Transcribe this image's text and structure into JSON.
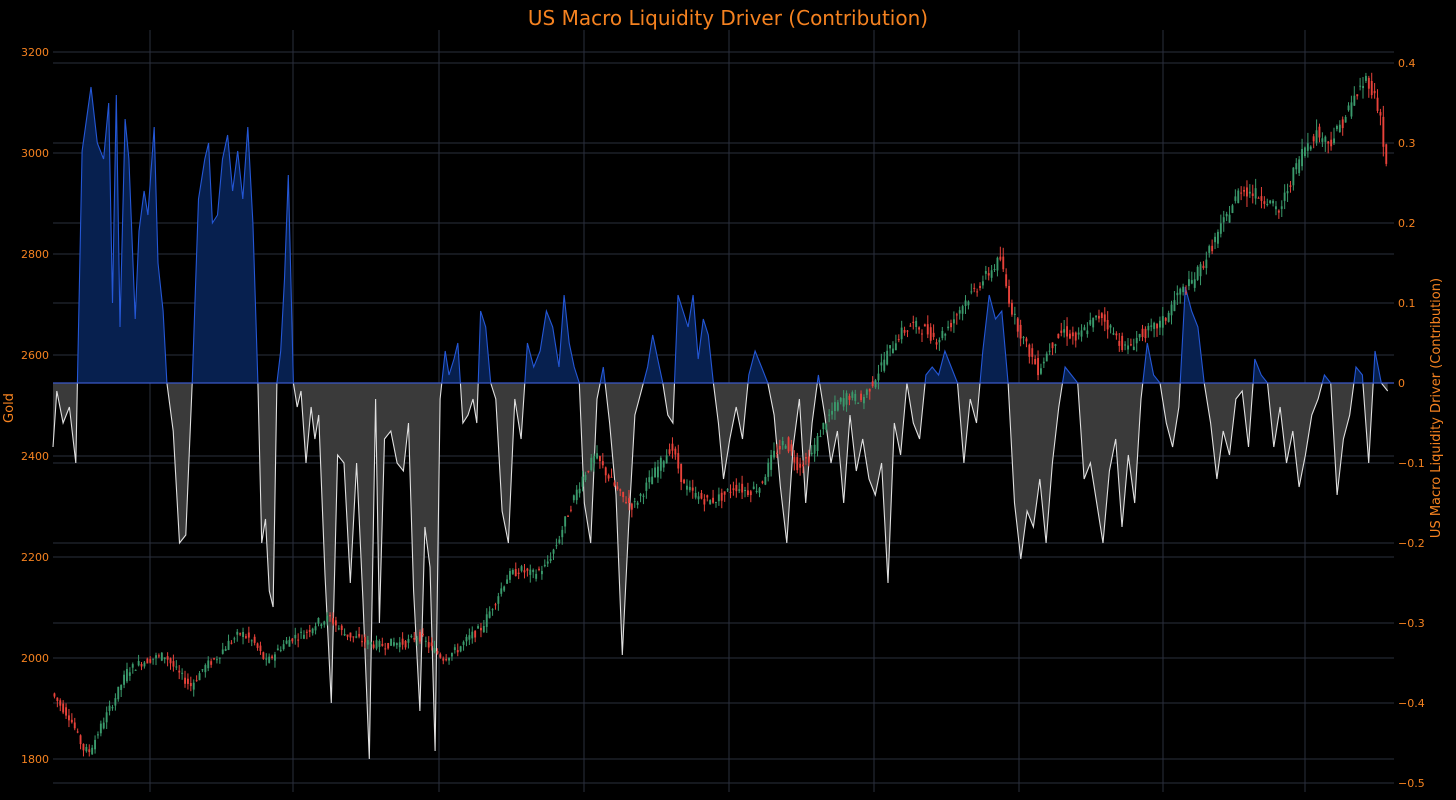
{
  "chart_data": {
    "type": "candlestick + area",
    "title": "US Macro Liquidity Driver (Contribution)",
    "y_left": {
      "label": "Gold",
      "range": [
        1750,
        3250
      ],
      "ticks": [
        1800,
        2000,
        2200,
        2400,
        2600,
        2800,
        3000,
        3200
      ]
    },
    "y_right": {
      "label": "US Macro Liquidity Driver (Contribution)",
      "range": [
        -0.5,
        0.43
      ],
      "ticks": [
        -0.5,
        -0.4,
        -0.3,
        -0.2,
        -0.1,
        0,
        0.1,
        0.2,
        0.3,
        0.4
      ]
    },
    "grid": true,
    "colors": {
      "up": "#3a9a6c",
      "down": "#e8423a",
      "positive": "#2457d6",
      "negative": "#e0e0e0",
      "positive_fill": "#07204f",
      "negative_fill": "#3a3a3a",
      "grid": "#2a2f3d",
      "accent": "#f58220"
    },
    "gold_path": [
      [
        0,
        1930
      ],
      [
        0.015,
        1880
      ],
      [
        0.025,
        1820
      ],
      [
        0.03,
        1815
      ],
      [
        0.04,
        1870
      ],
      [
        0.05,
        1920
      ],
      [
        0.06,
        1975
      ],
      [
        0.07,
        1990
      ],
      [
        0.08,
        2000
      ],
      [
        0.09,
        2005
      ],
      [
        0.1,
        1970
      ],
      [
        0.11,
        1945
      ],
      [
        0.12,
        1980
      ],
      [
        0.13,
        2000
      ],
      [
        0.14,
        2030
      ],
      [
        0.15,
        2050
      ],
      [
        0.16,
        2030
      ],
      [
        0.17,
        1990
      ],
      [
        0.18,
        2020
      ],
      [
        0.19,
        2040
      ],
      [
        0.2,
        2050
      ],
      [
        0.21,
        2070
      ],
      [
        0.22,
        2080
      ],
      [
        0.23,
        2050
      ],
      [
        0.24,
        2040
      ],
      [
        0.25,
        2030
      ],
      [
        0.26,
        2025
      ],
      [
        0.27,
        2030
      ],
      [
        0.28,
        2030
      ],
      [
        0.29,
        2045
      ],
      [
        0.3,
        2020
      ],
      [
        0.31,
        2000
      ],
      [
        0.32,
        2015
      ],
      [
        0.33,
        2040
      ],
      [
        0.34,
        2060
      ],
      [
        0.35,
        2110
      ],
      [
        0.36,
        2160
      ],
      [
        0.37,
        2175
      ],
      [
        0.38,
        2165
      ],
      [
        0.39,
        2180
      ],
      [
        0.4,
        2230
      ],
      [
        0.41,
        2300
      ],
      [
        0.42,
        2360
      ],
      [
        0.43,
        2400
      ],
      [
        0.44,
        2360
      ],
      [
        0.45,
        2320
      ],
      [
        0.46,
        2300
      ],
      [
        0.47,
        2340
      ],
      [
        0.48,
        2380
      ],
      [
        0.49,
        2420
      ],
      [
        0.5,
        2340
      ],
      [
        0.51,
        2320
      ],
      [
        0.52,
        2310
      ],
      [
        0.53,
        2320
      ],
      [
        0.54,
        2340
      ],
      [
        0.55,
        2330
      ],
      [
        0.56,
        2340
      ],
      [
        0.57,
        2400
      ],
      [
        0.58,
        2430
      ],
      [
        0.59,
        2380
      ],
      [
        0.6,
        2400
      ],
      [
        0.61,
        2460
      ],
      [
        0.62,
        2500
      ],
      [
        0.63,
        2520
      ],
      [
        0.64,
        2510
      ],
      [
        0.65,
        2550
      ],
      [
        0.66,
        2600
      ],
      [
        0.67,
        2640
      ],
      [
        0.68,
        2660
      ],
      [
        0.69,
        2650
      ],
      [
        0.7,
        2630
      ],
      [
        0.71,
        2660
      ],
      [
        0.72,
        2700
      ],
      [
        0.73,
        2730
      ],
      [
        0.74,
        2760
      ],
      [
        0.75,
        2790
      ],
      [
        0.755,
        2730
      ],
      [
        0.76,
        2680
      ],
      [
        0.77,
        2620
      ],
      [
        0.78,
        2570
      ],
      [
        0.79,
        2620
      ],
      [
        0.8,
        2650
      ],
      [
        0.81,
        2630
      ],
      [
        0.82,
        2660
      ],
      [
        0.83,
        2680
      ],
      [
        0.84,
        2640
      ],
      [
        0.85,
        2610
      ],
      [
        0.86,
        2640
      ],
      [
        0.87,
        2650
      ],
      [
        0.88,
        2670
      ],
      [
        0.89,
        2720
      ],
      [
        0.9,
        2740
      ],
      [
        0.91,
        2780
      ],
      [
        0.92,
        2830
      ],
      [
        0.93,
        2880
      ],
      [
        0.94,
        2930
      ],
      [
        0.95,
        2920
      ],
      [
        0.96,
        2910
      ],
      [
        0.97,
        2880
      ],
      [
        0.98,
        2950
      ],
      [
        0.99,
        3010
      ],
      [
        1.0,
        3040
      ],
      [
        1.01,
        3020
      ],
      [
        1.02,
        3060
      ],
      [
        1.03,
        3110
      ],
      [
        1.04,
        3150
      ],
      [
        1.05,
        3080
      ],
      [
        1.055,
        2970
      ]
    ],
    "driver_path": [
      [
        0,
        -0.08
      ],
      [
        0.003,
        -0.01
      ],
      [
        0.008,
        -0.05
      ],
      [
        0.013,
        -0.03
      ],
      [
        0.018,
        -0.1
      ],
      [
        0.023,
        0.29
      ],
      [
        0.03,
        0.37
      ],
      [
        0.035,
        0.3
      ],
      [
        0.04,
        0.28
      ],
      [
        0.044,
        0.35
      ],
      [
        0.047,
        0.1
      ],
      [
        0.05,
        0.36
      ],
      [
        0.053,
        0.07
      ],
      [
        0.057,
        0.33
      ],
      [
        0.06,
        0.28
      ],
      [
        0.065,
        0.08
      ],
      [
        0.068,
        0.19
      ],
      [
        0.072,
        0.24
      ],
      [
        0.075,
        0.21
      ],
      [
        0.08,
        0.32
      ],
      [
        0.083,
        0.15
      ],
      [
        0.087,
        0.09
      ],
      [
        0.09,
        0
      ],
      [
        0.095,
        -0.06
      ],
      [
        0.1,
        -0.2
      ],
      [
        0.105,
        -0.19
      ],
      [
        0.11,
        0
      ],
      [
        0.115,
        0.23
      ],
      [
        0.12,
        0.28
      ],
      [
        0.123,
        0.3
      ],
      [
        0.126,
        0.2
      ],
      [
        0.13,
        0.21
      ],
      [
        0.134,
        0.28
      ],
      [
        0.138,
        0.31
      ],
      [
        0.142,
        0.24
      ],
      [
        0.146,
        0.29
      ],
      [
        0.15,
        0.23
      ],
      [
        0.154,
        0.32
      ],
      [
        0.158,
        0.2
      ],
      [
        0.162,
        0
      ],
      [
        0.165,
        -0.2
      ],
      [
        0.168,
        -0.17
      ],
      [
        0.171,
        -0.26
      ],
      [
        0.174,
        -0.28
      ],
      [
        0.177,
        0
      ],
      [
        0.18,
        0.04
      ],
      [
        0.183,
        0.13
      ],
      [
        0.186,
        0.26
      ],
      [
        0.19,
        0
      ],
      [
        0.193,
        -0.03
      ],
      [
        0.196,
        -0.01
      ],
      [
        0.2,
        -0.1
      ],
      [
        0.204,
        -0.03
      ],
      [
        0.207,
        -0.07
      ],
      [
        0.21,
        -0.04
      ],
      [
        0.215,
        -0.24
      ],
      [
        0.22,
        -0.4
      ],
      [
        0.225,
        -0.09
      ],
      [
        0.23,
        -0.1
      ],
      [
        0.235,
        -0.25
      ],
      [
        0.24,
        -0.1
      ],
      [
        0.245,
        -0.27
      ],
      [
        0.25,
        -0.47
      ],
      [
        0.255,
        -0.02
      ],
      [
        0.258,
        -0.3
      ],
      [
        0.262,
        -0.07
      ],
      [
        0.267,
        -0.06
      ],
      [
        0.272,
        -0.1
      ],
      [
        0.277,
        -0.11
      ],
      [
        0.281,
        -0.05
      ],
      [
        0.285,
        -0.26
      ],
      [
        0.29,
        -0.41
      ],
      [
        0.294,
        -0.18
      ],
      [
        0.298,
        -0.23
      ],
      [
        0.302,
        -0.46
      ],
      [
        0.306,
        -0.02
      ],
      [
        0.31,
        0.04
      ],
      [
        0.313,
        0.01
      ],
      [
        0.317,
        0.03
      ],
      [
        0.32,
        0.05
      ],
      [
        0.324,
        -0.05
      ],
      [
        0.328,
        -0.04
      ],
      [
        0.332,
        -0.02
      ],
      [
        0.335,
        -0.05
      ],
      [
        0.338,
        0.09
      ],
      [
        0.342,
        0.07
      ],
      [
        0.346,
        0
      ],
      [
        0.35,
        -0.02
      ],
      [
        0.355,
        -0.16
      ],
      [
        0.36,
        -0.2
      ],
      [
        0.365,
        -0.02
      ],
      [
        0.37,
        -0.07
      ],
      [
        0.375,
        0.05
      ],
      [
        0.38,
        0.02
      ],
      [
        0.385,
        0.04
      ],
      [
        0.39,
        0.09
      ],
      [
        0.395,
        0.07
      ],
      [
        0.4,
        0.02
      ],
      [
        0.404,
        0.11
      ],
      [
        0.408,
        0.05
      ],
      [
        0.412,
        0.02
      ],
      [
        0.416,
        0
      ],
      [
        0.42,
        -0.15
      ],
      [
        0.425,
        -0.2
      ],
      [
        0.43,
        -0.02
      ],
      [
        0.435,
        0.02
      ],
      [
        0.44,
        -0.05
      ],
      [
        0.445,
        -0.14
      ],
      [
        0.45,
        -0.34
      ],
      [
        0.455,
        -0.18
      ],
      [
        0.46,
        -0.04
      ],
      [
        0.465,
        -0.01
      ],
      [
        0.47,
        0.02
      ],
      [
        0.474,
        0.06
      ],
      [
        0.478,
        0.03
      ],
      [
        0.482,
        0
      ],
      [
        0.486,
        -0.04
      ],
      [
        0.49,
        -0.05
      ],
      [
        0.494,
        0.11
      ],
      [
        0.498,
        0.09
      ],
      [
        0.502,
        0.07
      ],
      [
        0.506,
        0.11
      ],
      [
        0.51,
        0.03
      ],
      [
        0.514,
        0.08
      ],
      [
        0.518,
        0.06
      ],
      [
        0.522,
        0
      ],
      [
        0.526,
        -0.05
      ],
      [
        0.53,
        -0.12
      ],
      [
        0.535,
        -0.07
      ],
      [
        0.54,
        -0.03
      ],
      [
        0.545,
        -0.07
      ],
      [
        0.55,
        0.01
      ],
      [
        0.555,
        0.04
      ],
      [
        0.56,
        0.02
      ],
      [
        0.565,
        0
      ],
      [
        0.57,
        -0.04
      ],
      [
        0.575,
        -0.13
      ],
      [
        0.58,
        -0.2
      ],
      [
        0.585,
        -0.08
      ],
      [
        0.59,
        -0.02
      ],
      [
        0.595,
        -0.15
      ],
      [
        0.6,
        -0.05
      ],
      [
        0.605,
        0.01
      ],
      [
        0.61,
        -0.04
      ],
      [
        0.615,
        -0.1
      ],
      [
        0.62,
        -0.06
      ],
      [
        0.625,
        -0.15
      ],
      [
        0.63,
        -0.04
      ],
      [
        0.635,
        -0.11
      ],
      [
        0.64,
        -0.07
      ],
      [
        0.645,
        -0.12
      ],
      [
        0.65,
        -0.14
      ],
      [
        0.655,
        -0.1
      ],
      [
        0.66,
        -0.25
      ],
      [
        0.665,
        -0.05
      ],
      [
        0.67,
        -0.09
      ],
      [
        0.675,
        0
      ],
      [
        0.68,
        -0.05
      ],
      [
        0.685,
        -0.07
      ],
      [
        0.69,
        0.01
      ],
      [
        0.695,
        0.02
      ],
      [
        0.7,
        0.01
      ],
      [
        0.705,
        0.04
      ],
      [
        0.71,
        0.02
      ],
      [
        0.715,
        0
      ],
      [
        0.72,
        -0.1
      ],
      [
        0.725,
        -0.02
      ],
      [
        0.73,
        -0.05
      ],
      [
        0.735,
        0.04
      ],
      [
        0.74,
        0.11
      ],
      [
        0.745,
        0.08
      ],
      [
        0.75,
        0.09
      ],
      [
        0.755,
        0
      ],
      [
        0.76,
        -0.15
      ],
      [
        0.765,
        -0.22
      ],
      [
        0.77,
        -0.16
      ],
      [
        0.775,
        -0.18
      ],
      [
        0.78,
        -0.12
      ],
      [
        0.785,
        -0.2
      ],
      [
        0.79,
        -0.1
      ],
      [
        0.795,
        -0.03
      ],
      [
        0.8,
        0.02
      ],
      [
        0.805,
        0.01
      ],
      [
        0.81,
        0
      ],
      [
        0.815,
        -0.12
      ],
      [
        0.82,
        -0.1
      ],
      [
        0.825,
        -0.15
      ],
      [
        0.83,
        -0.2
      ],
      [
        0.835,
        -0.11
      ],
      [
        0.84,
        -0.07
      ],
      [
        0.845,
        -0.18
      ],
      [
        0.85,
        -0.09
      ],
      [
        0.855,
        -0.15
      ],
      [
        0.86,
        -0.02
      ],
      [
        0.865,
        0.05
      ],
      [
        0.87,
        0.01
      ],
      [
        0.875,
        0
      ],
      [
        0.88,
        -0.05
      ],
      [
        0.885,
        -0.08
      ],
      [
        0.89,
        -0.03
      ],
      [
        0.895,
        0.12
      ],
      [
        0.9,
        0.09
      ],
      [
        0.905,
        0.07
      ],
      [
        0.91,
        0
      ],
      [
        0.915,
        -0.05
      ],
      [
        0.92,
        -0.12
      ],
      [
        0.925,
        -0.06
      ],
      [
        0.93,
        -0.09
      ],
      [
        0.935,
        -0.02
      ],
      [
        0.94,
        -0.01
      ],
      [
        0.945,
        -0.08
      ],
      [
        0.95,
        0.03
      ],
      [
        0.955,
        0.01
      ],
      [
        0.96,
        0
      ],
      [
        0.965,
        -0.08
      ],
      [
        0.97,
        -0.03
      ],
      [
        0.975,
        -0.1
      ],
      [
        0.98,
        -0.06
      ],
      [
        0.985,
        -0.13
      ],
      [
        0.99,
        -0.09
      ],
      [
        0.995,
        -0.04
      ],
      [
        1.0,
        -0.02
      ],
      [
        1.005,
        0.01
      ],
      [
        1.01,
        0
      ],
      [
        1.015,
        -0.14
      ],
      [
        1.02,
        -0.07
      ],
      [
        1.025,
        -0.04
      ],
      [
        1.03,
        0.02
      ],
      [
        1.035,
        0.01
      ],
      [
        1.04,
        -0.1
      ],
      [
        1.045,
        0.04
      ],
      [
        1.05,
        0
      ],
      [
        1.055,
        -0.01
      ]
    ]
  }
}
